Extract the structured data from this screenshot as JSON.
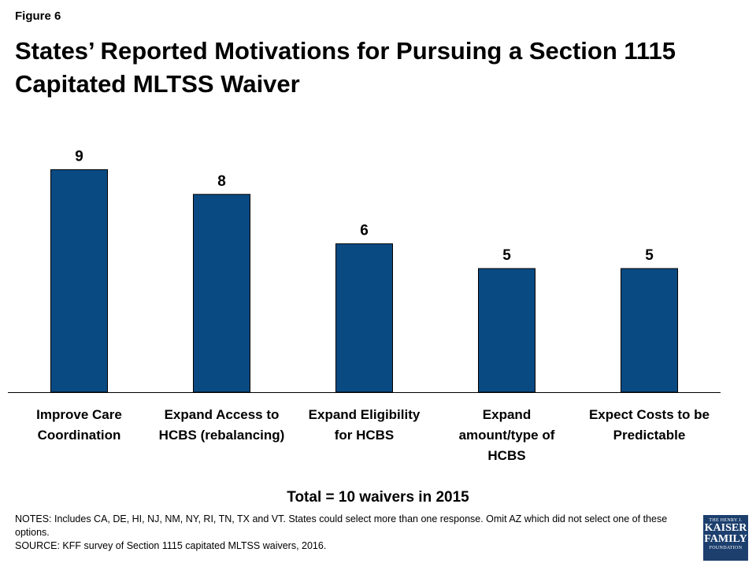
{
  "figure_label": "Figure 6",
  "chart_data": {
    "type": "bar",
    "title": "States’ Reported Motivations for Pursuing a Section 1115 Capitated MLTSS Waiver",
    "categories": [
      [
        "Improve Care",
        "Coordination"
      ],
      [
        "Expand Access to",
        "HCBS (rebalancing)"
      ],
      [
        "Expand Eligibility",
        "for HCBS"
      ],
      [
        "Expand",
        "amount/type of",
        "HCBS"
      ],
      [
        "Expect Costs to be",
        "Predictable"
      ]
    ],
    "values": [
      9,
      8,
      6,
      5,
      5
    ],
    "data_labels": [
      "9",
      "8",
      "6",
      "5",
      "5"
    ],
    "ylim": [
      0,
      10
    ],
    "bar_color": "#0a4a82",
    "grid": false,
    "legend": "none"
  },
  "total_note": "Total = 10 waivers in 2015",
  "notes": "NOTES:  Includes CA, DE, HI, NJ, NM, NY, RI, TN, TX and VT. States could select more than one response.  Omit AZ which did not select one of these options.",
  "source": "SOURCE: KFF survey of Section 1115 capitated MLTSS waivers, 2016.",
  "logo": {
    "line1": "THE HENRY J.",
    "line2": "KAISER",
    "line3": "FAMILY",
    "line4": "FOUNDATION"
  }
}
